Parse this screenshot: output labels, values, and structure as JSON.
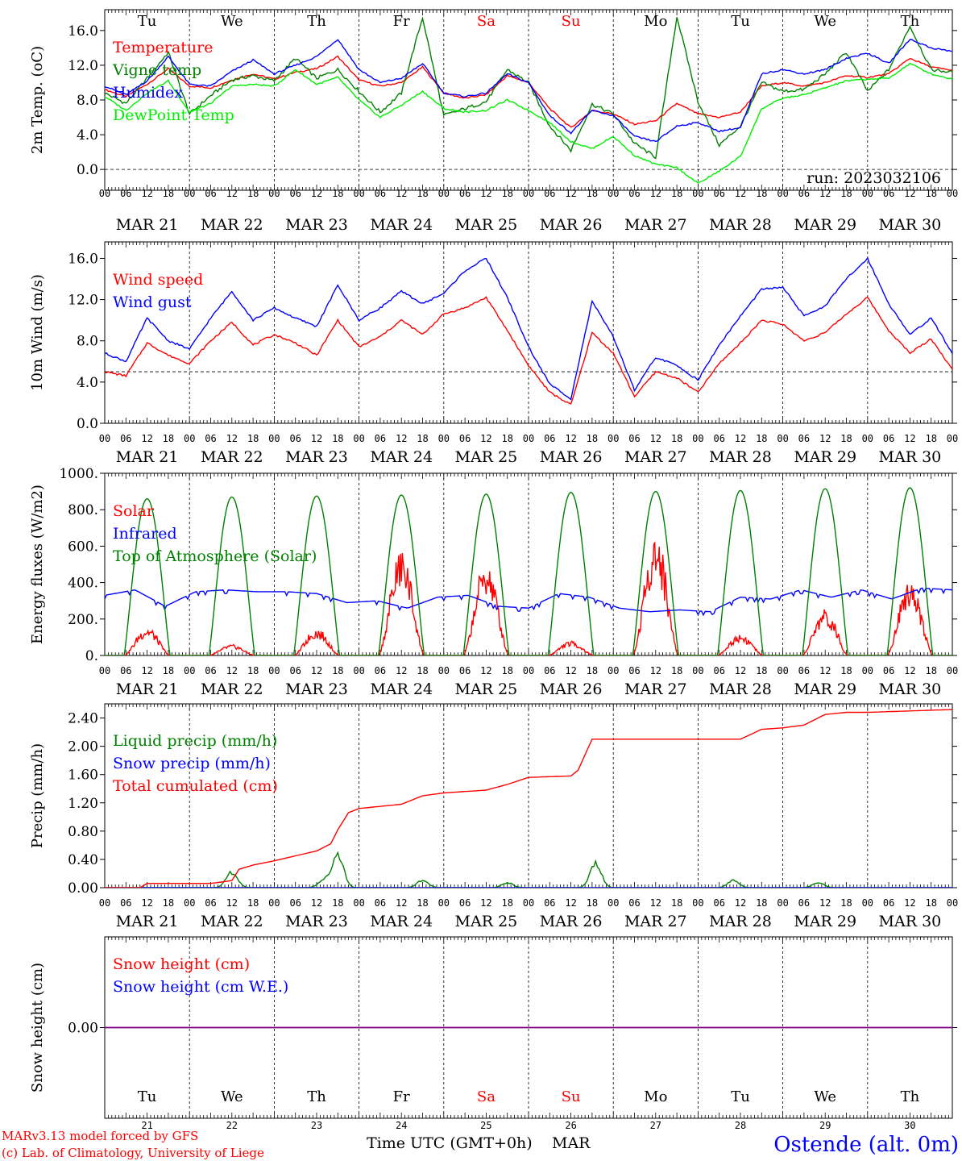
{
  "run_label": "run: 2023032106",
  "footer": {
    "model": "MARv3.13 model forced by GFS",
    "lab": "(c) Lab. of Climatology, University of Liege",
    "xlabel": "Time UTC (GMT+0h)",
    "month": "MAR",
    "station": "Ostende (alt. 0m)"
  },
  "days": [
    "Tu",
    "We",
    "Th",
    "Fr",
    "Sa",
    "Su",
    "Mo",
    "Tu",
    "We",
    "Th"
  ],
  "weekend_days": [
    "Sa",
    "Su"
  ],
  "dates": [
    "MAR 21",
    "MAR 22",
    "MAR 23",
    "MAR 24",
    "MAR 25",
    "MAR 26",
    "MAR 27",
    "MAR 28",
    "MAR 29",
    "MAR 30"
  ],
  "day_numbers": [
    "21",
    "22",
    "23",
    "24",
    "25",
    "26",
    "27",
    "28",
    "29",
    "30"
  ],
  "hour_ticks": [
    "00",
    "06",
    "12",
    "18"
  ],
  "hour_end": "00",
  "colors": {
    "red": "#ff0000",
    "green": "#008000",
    "blue": "#0000ff",
    "lightgreen": "#00ee00",
    "purple": "#800080"
  },
  "chart_data": [
    {
      "type": "line",
      "ylabel": "2m Temp. (oC)",
      "ylim": [
        -2.4,
        18.4
      ],
      "yticks": [
        "16.0",
        "12.0",
        "8.0",
        "4.0",
        "0.0"
      ],
      "ytick_values": [
        16,
        12,
        8,
        4,
        0
      ],
      "reference_line": 0,
      "x_hours": [
        0,
        6,
        12,
        18,
        24,
        30,
        36,
        42,
        48,
        54,
        60,
        66,
        72,
        78,
        84,
        90,
        96,
        102,
        108,
        114,
        120,
        126,
        132,
        138,
        144,
        150,
        156,
        162,
        168,
        174,
        180,
        186,
        192,
        198,
        204,
        210,
        216,
        222,
        228,
        234,
        240
      ],
      "series": [
        {
          "name": "Temperature",
          "color": "#ff0000",
          "values": [
            9.2,
            8.4,
            9.8,
            11.6,
            9.6,
            9.4,
            10.3,
            11.0,
            10.4,
            11.2,
            11.6,
            13.0,
            10.3,
            9.6,
            10.0,
            11.8,
            8.8,
            8.2,
            8.6,
            10.8,
            10.0,
            7.0,
            4.8,
            6.8,
            6.4,
            5.2,
            5.6,
            7.6,
            6.4,
            6.0,
            6.6,
            9.6,
            10.0,
            9.6,
            10.0,
            10.8,
            10.6,
            11.0,
            12.8,
            11.8,
            11.4
          ]
        },
        {
          "name": "Vigne temp",
          "color": "#008000",
          "values": [
            8.8,
            7.6,
            10.5,
            13.5,
            6.4,
            8.5,
            10.3,
            10.8,
            10.2,
            12.8,
            10.5,
            11.5,
            9.0,
            6.6,
            8.8,
            17.5,
            6.2,
            7.0,
            7.8,
            11.5,
            10.0,
            5.0,
            2.2,
            7.5,
            6.4,
            3.0,
            1.4,
            17.6,
            7.8,
            2.8,
            5.0,
            10.0,
            9.0,
            9.2,
            11.0,
            13.5,
            9.0,
            11.5,
            16.5,
            11.5,
            11.2
          ]
        },
        {
          "name": "Humidex",
          "color": "#0000ff",
          "values": [
            9.6,
            8.6,
            10.2,
            13.0,
            9.8,
            9.6,
            11.3,
            12.6,
            11.0,
            12.0,
            13.0,
            15.0,
            11.5,
            10.0,
            10.5,
            12.2,
            8.8,
            8.4,
            8.8,
            11.0,
            10.0,
            6.2,
            4.2,
            6.8,
            6.2,
            3.8,
            3.2,
            5.0,
            5.4,
            4.4,
            4.8,
            11.0,
            11.5,
            11.0,
            11.5,
            12.8,
            13.4,
            12.2,
            15.0,
            14.0,
            13.6
          ]
        },
        {
          "name": "DewPoint Temp",
          "color": "#00ee00",
          "values": [
            8.4,
            6.8,
            8.8,
            10.2,
            6.6,
            7.6,
            9.6,
            9.8,
            9.6,
            11.5,
            9.8,
            10.6,
            8.0,
            6.0,
            7.4,
            9.0,
            7.0,
            6.6,
            6.8,
            8.0,
            6.8,
            5.4,
            3.2,
            2.4,
            3.8,
            1.6,
            0.6,
            0.2,
            -1.6,
            -0.2,
            1.5,
            7.0,
            8.2,
            8.6,
            9.4,
            10.2,
            10.4,
            10.5,
            12.2,
            11.0,
            10.4
          ]
        }
      ]
    },
    {
      "type": "line",
      "ylabel": "10m Wind (m/s)",
      "ylim": [
        0,
        17.6
      ],
      "yticks": [
        "16.0",
        "12.0",
        "8.0",
        "4.0",
        "0.0"
      ],
      "ytick_values": [
        16,
        12,
        8,
        4,
        0
      ],
      "reference_line": 5,
      "x_hours": [
        0,
        6,
        12,
        18,
        24,
        30,
        36,
        42,
        48,
        54,
        60,
        66,
        72,
        78,
        84,
        90,
        96,
        102,
        108,
        114,
        120,
        126,
        132,
        138,
        144,
        150,
        156,
        162,
        168,
        174,
        180,
        186,
        192,
        198,
        204,
        210,
        216,
        222,
        228,
        234,
        240
      ],
      "series": [
        {
          "name": "Wind speed",
          "color": "#ff0000",
          "values": [
            5.0,
            4.6,
            7.8,
            6.6,
            5.8,
            8.0,
            9.8,
            7.6,
            8.6,
            7.8,
            6.6,
            10.0,
            7.4,
            8.4,
            10.0,
            8.6,
            10.6,
            11.2,
            12.2,
            9.0,
            5.6,
            3.0,
            1.8,
            8.8,
            6.8,
            2.6,
            5.0,
            4.4,
            3.0,
            5.8,
            7.8,
            10.0,
            9.6,
            8.0,
            8.8,
            10.6,
            12.2,
            9.0,
            6.8,
            8.2,
            5.2
          ]
        },
        {
          "name": "Wind gust",
          "color": "#0000ff",
          "values": [
            6.8,
            6.0,
            10.2,
            8.0,
            7.2,
            10.2,
            12.8,
            10.0,
            11.2,
            10.2,
            9.4,
            13.4,
            10.0,
            11.2,
            12.8,
            11.6,
            12.6,
            14.8,
            16.0,
            12.2,
            7.4,
            3.8,
            2.4,
            11.8,
            8.4,
            3.2,
            6.4,
            5.6,
            4.2,
            7.6,
            10.4,
            13.0,
            13.2,
            10.4,
            11.4,
            14.0,
            16.0,
            11.6,
            8.6,
            10.2,
            6.8
          ]
        }
      ]
    },
    {
      "type": "line",
      "ylabel": "Energy fluxes (W/m2)",
      "ylim": [
        0,
        1000
      ],
      "yticks": [
        "1000.",
        "800.",
        "600.",
        "400.",
        "200.",
        "0."
      ],
      "ytick_values": [
        1000,
        800,
        600,
        400,
        200,
        0
      ],
      "series": [
        {
          "name": "Solar",
          "color": "#ff0000",
          "daily_peaks": [
            160,
            60,
            150,
            590,
            530,
            80,
            680,
            120,
            260,
            440
          ]
        },
        {
          "name": "Infrared",
          "color": "#0000ff",
          "values": [
            330,
            360,
            270,
            350,
            360,
            350,
            350,
            340,
            290,
            300,
            260,
            320,
            330,
            270,
            260,
            340,
            320,
            260,
            240,
            250,
            240,
            320,
            310,
            360,
            320,
            360,
            310,
            370,
            360
          ]
        },
        {
          "name": "Top of Atmosphere (Solar)",
          "color": "#008000",
          "daily_peaks": [
            860,
            870,
            875,
            880,
            885,
            895,
            900,
            905,
            915,
            920
          ]
        }
      ]
    },
    {
      "type": "line",
      "ylabel": "Precip (mm/h)",
      "ylim": [
        0,
        2.6
      ],
      "yticks": [
        "2.40",
        "2.00",
        "1.60",
        "1.20",
        "0.80",
        "0.40",
        "0.00"
      ],
      "ytick_values": [
        2.4,
        2.0,
        1.6,
        1.2,
        0.8,
        0.4,
        0.0
      ],
      "series": [
        {
          "name": "Liquid precip (mm/h)",
          "color": "#008000",
          "peaks": [
            {
              "h": 36,
              "v": 0.25
            },
            {
              "h": 62,
              "v": 0.12
            },
            {
              "h": 66,
              "v": 0.55
            },
            {
              "h": 90,
              "v": 0.12
            },
            {
              "h": 114,
              "v": 0.08
            },
            {
              "h": 139,
              "v": 0.4
            },
            {
              "h": 178,
              "v": 0.12
            },
            {
              "h": 202,
              "v": 0.08
            }
          ]
        },
        {
          "name": "Snow precip (mm/h)",
          "color": "#0000ff",
          "values": [
            0
          ]
        },
        {
          "name": "Total cumulated (cm)",
          "color": "#ff0000",
          "x_hours": [
            0,
            10,
            12,
            24,
            30,
            36,
            38,
            42,
            48,
            54,
            60,
            64,
            66,
            69,
            72,
            84,
            90,
            96,
            108,
            114,
            120,
            132,
            134,
            138,
            144,
            156,
            168,
            180,
            186,
            192,
            198,
            204,
            210,
            216,
            228,
            240
          ],
          "values": [
            0,
            0,
            0.06,
            0.06,
            0.06,
            0.1,
            0.26,
            0.32,
            0.38,
            0.45,
            0.52,
            0.62,
            0.82,
            1.06,
            1.12,
            1.18,
            1.3,
            1.34,
            1.38,
            1.46,
            1.56,
            1.58,
            1.66,
            2.1,
            2.1,
            2.1,
            2.1,
            2.1,
            2.24,
            2.26,
            2.3,
            2.45,
            2.48,
            2.48,
            2.5,
            2.52
          ]
        }
      ]
    },
    {
      "type": "line",
      "ylabel": "Snow height (cm)",
      "ylim": [
        -1,
        1
      ],
      "yticks": [
        "0.00"
      ],
      "ytick_values": [
        0
      ],
      "series": [
        {
          "name": "Snow height (cm)",
          "color": "#ff0000",
          "values": [
            0,
            0
          ]
        },
        {
          "name": "Snow height (cm W.E.)",
          "color": "#0000ff",
          "values": [
            0,
            0
          ]
        }
      ]
    }
  ]
}
